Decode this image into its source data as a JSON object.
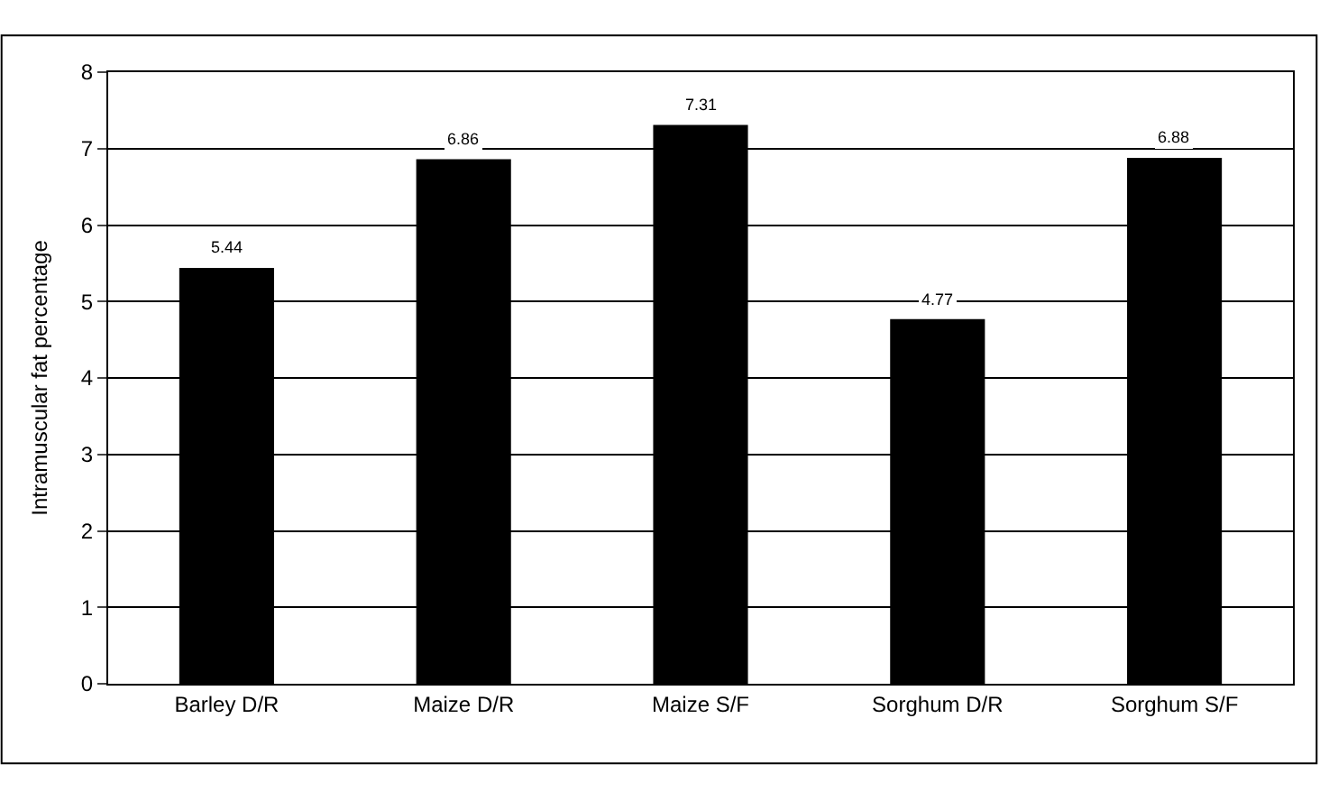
{
  "chart_data": {
    "type": "bar",
    "ylabel": "Intramuscular fat percentage",
    "categories": [
      "Barley D/R",
      "Maize D/R",
      "Maize S/F",
      "Sorghum D/R",
      "Sorghum S/F"
    ],
    "values": [
      5.44,
      6.86,
      7.31,
      4.77,
      6.88
    ],
    "color": "#000000",
    "ylim": [
      0,
      8
    ],
    "yticks": [
      0,
      1,
      2,
      3,
      4,
      5,
      6,
      7,
      8
    ],
    "grid": "y",
    "data_labels": true
  }
}
